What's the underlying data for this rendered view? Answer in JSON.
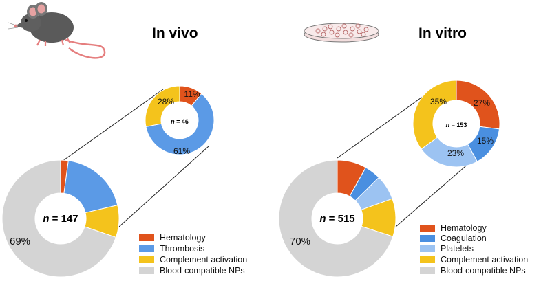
{
  "colors": {
    "hematology": "#e0531c",
    "thrombosis": "#5b9ae6",
    "coagulation": "#4a8fe0",
    "platelets": "#9cc3f2",
    "complement": "#f4c31c",
    "blood_compatible": "#d4d4d4"
  },
  "chart_data": [
    {
      "type": "pie",
      "title": "In vivo",
      "icon": "mouse-icon",
      "n_label": "n = 147",
      "center_label": {
        "italic": "n",
        "rest": " = 147"
      },
      "slices": [
        {
          "name": "Hematology",
          "value": 2.1,
          "color": "#e0531c"
        },
        {
          "name": "Thrombosis",
          "value": 19,
          "color": "#5b9ae6"
        },
        {
          "name": "Complement activation",
          "value": 8.8,
          "color": "#f4c31c"
        },
        {
          "name": "Blood-compatible NPs",
          "value": 69,
          "color": "#d4d4d4",
          "label": "69%"
        }
      ],
      "inset": {
        "center_label": {
          "italic": "n",
          "rest": " = 46"
        },
        "slices": [
          {
            "name": "Hematology",
            "value": 11,
            "color": "#e0531c",
            "label": "11%"
          },
          {
            "name": "Thrombosis",
            "value": 61,
            "color": "#5b9ae6",
            "label": "61%"
          },
          {
            "name": "Complement activation",
            "value": 28,
            "color": "#f4c31c",
            "label": "28%"
          }
        ]
      },
      "legend": [
        "Hematology",
        "Thrombosis",
        "Complement activation",
        "Blood-compatible NPs"
      ]
    },
    {
      "type": "pie",
      "title": "In vitro",
      "icon": "petri-dish-icon",
      "center_label": {
        "italic": "n",
        "rest": " = 515"
      },
      "slices": [
        {
          "name": "Hematology",
          "value": 8.1,
          "color": "#e0531c"
        },
        {
          "name": "Coagulation",
          "value": 4.5,
          "color": "#4a8fe0"
        },
        {
          "name": "Platelets",
          "value": 6.9,
          "color": "#9cc3f2"
        },
        {
          "name": "Complement activation",
          "value": 10.5,
          "color": "#f4c31c"
        },
        {
          "name": "Blood-compatible NPs",
          "value": 70,
          "color": "#d4d4d4",
          "label": "70%"
        }
      ],
      "inset": {
        "center_label": {
          "italic": "n",
          "rest": " = 153"
        },
        "slices": [
          {
            "name": "Hematology",
            "value": 27,
            "color": "#e0531c",
            "label": "27%"
          },
          {
            "name": "Coagulation",
            "value": 15,
            "color": "#4a8fe0",
            "label": "15%"
          },
          {
            "name": "Platelets",
            "value": 23,
            "color": "#9cc3f2",
            "label": "23%"
          },
          {
            "name": "Complement activation",
            "value": 35,
            "color": "#f4c31c",
            "label": "35%"
          }
        ]
      },
      "legend": [
        "Hematology",
        "Coagulation",
        "Platelets",
        "Complement activation",
        "Blood-compatible NPs"
      ]
    }
  ]
}
